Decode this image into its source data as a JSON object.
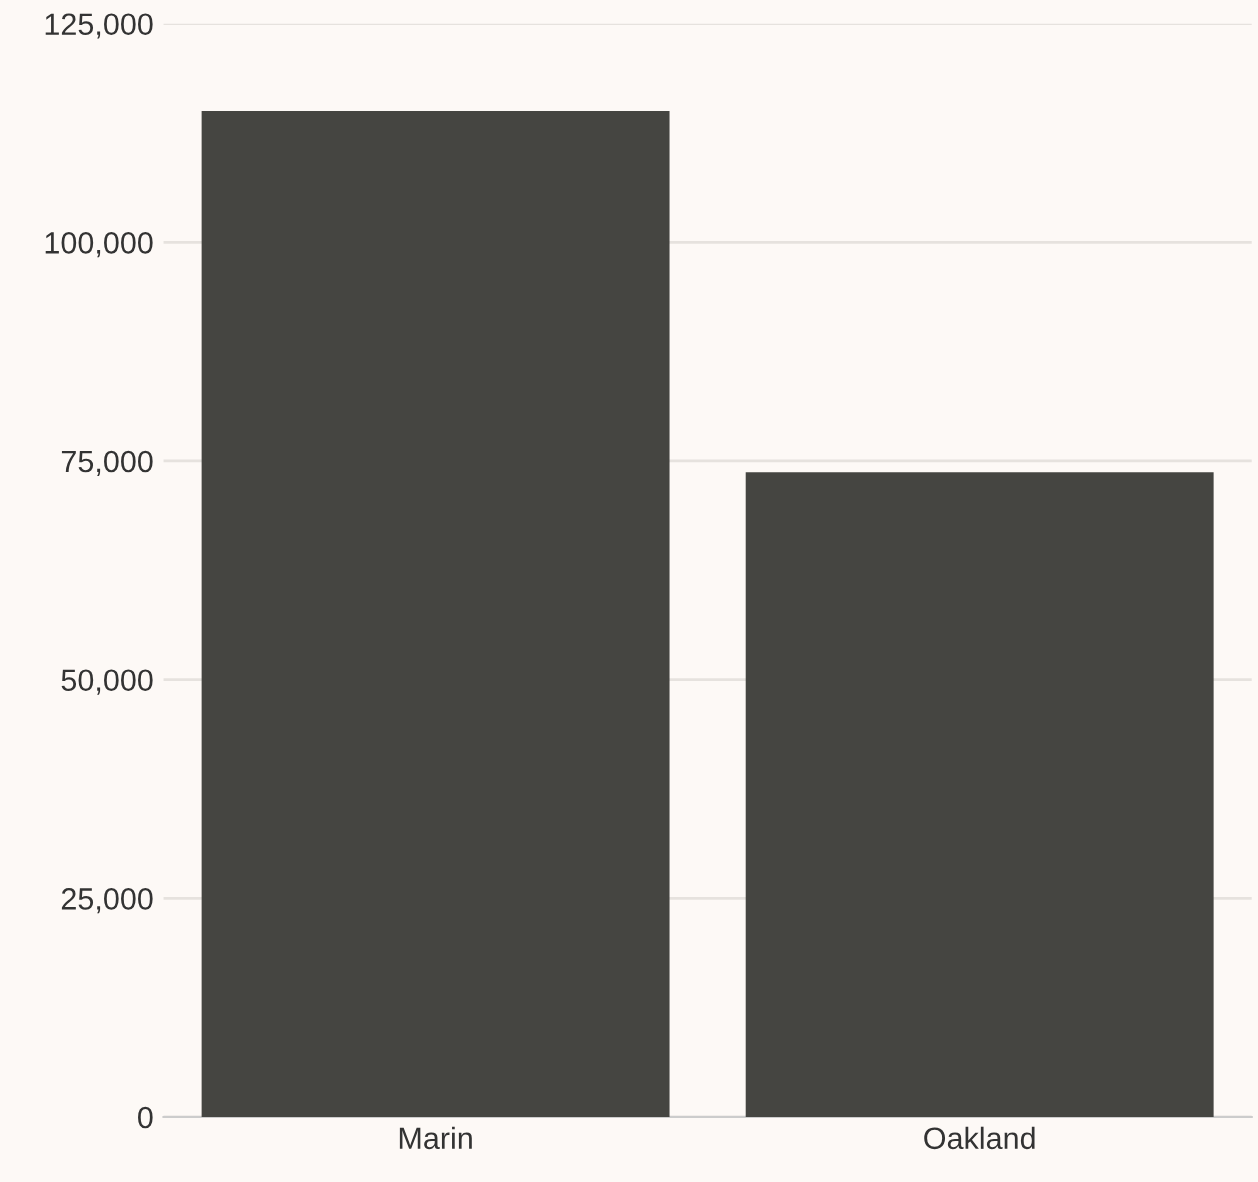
{
  "chart_data": {
    "type": "bar",
    "categories": [
      "Marin",
      "Oakland"
    ],
    "values": [
      115000,
      73700
    ],
    "color": "#454541",
    "ylim": [
      0,
      125000
    ],
    "yticks": [
      {
        "value": 0,
        "label": "0"
      },
      {
        "value": 25000,
        "label": "25,000"
      },
      {
        "value": 50000,
        "label": "50,000"
      },
      {
        "value": 75000,
        "label": "75,000"
      },
      {
        "value": 100000,
        "label": "100,000"
      },
      {
        "value": 125000,
        "label": "125,000"
      }
    ],
    "grid": "y"
  }
}
